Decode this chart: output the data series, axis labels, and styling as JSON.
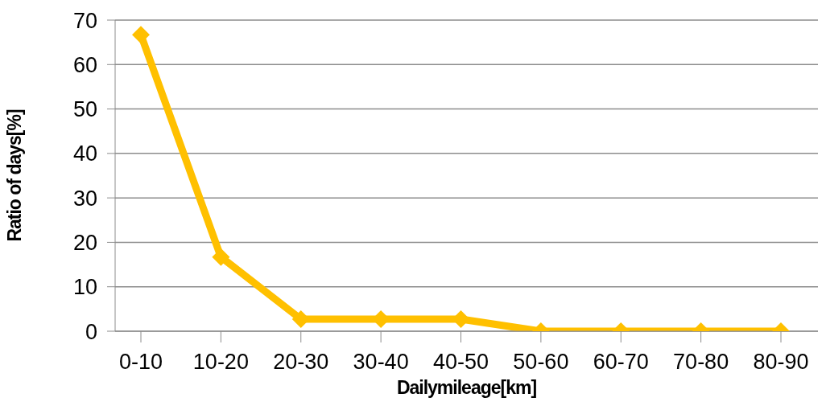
{
  "chart_data": {
    "type": "line",
    "xlabel": "Dailymileage[km]",
    "ylabel": "Ratio of days[%]",
    "categories": [
      "0-10",
      "10-20",
      "20-30",
      "30-40",
      "40-50",
      "50-60",
      "60-70",
      "70-80",
      "80-90"
    ],
    "series": [
      {
        "color": "#ffc000",
        "values": [
          66.7,
          16.7,
          2.7,
          2.7,
          2.7,
          0,
          0,
          0,
          0
        ]
      }
    ],
    "ylim": [
      0,
      70
    ],
    "yticks": [
      0,
      10,
      20,
      30,
      40,
      50,
      60,
      70
    ],
    "grid": "y",
    "marker": "diamond"
  }
}
